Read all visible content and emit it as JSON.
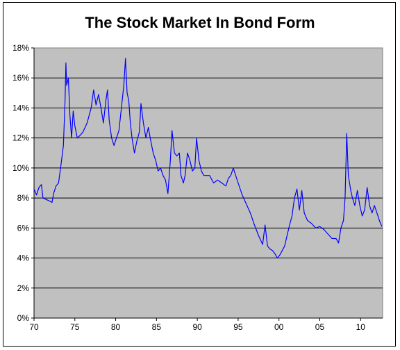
{
  "chart_data": {
    "type": "line",
    "title": "The Stock Market In Bond Form",
    "xlabel": "",
    "ylabel": "",
    "xlim": [
      1970,
      2012.7
    ],
    "ylim": [
      0,
      18
    ],
    "grid": true,
    "legend": "none",
    "x_ticks": [
      {
        "value": 1970,
        "label": "70"
      },
      {
        "value": 1975,
        "label": "75"
      },
      {
        "value": 1980,
        "label": "80"
      },
      {
        "value": 1985,
        "label": "85"
      },
      {
        "value": 1990,
        "label": "90"
      },
      {
        "value": 1995,
        "label": "95"
      },
      {
        "value": 2000,
        "label": "00"
      },
      {
        "value": 2005,
        "label": "05"
      },
      {
        "value": 2010,
        "label": "10"
      }
    ],
    "y_ticks": [
      {
        "value": 0,
        "label": "0%"
      },
      {
        "value": 2,
        "label": "2%"
      },
      {
        "value": 4,
        "label": "4%"
      },
      {
        "value": 6,
        "label": "6%"
      },
      {
        "value": 8,
        "label": "8%"
      },
      {
        "value": 10,
        "label": "10%"
      },
      {
        "value": 12,
        "label": "12%"
      },
      {
        "value": 14,
        "label": "14%"
      },
      {
        "value": 16,
        "label": "16%"
      },
      {
        "value": 18,
        "label": "18%"
      }
    ],
    "series": [
      {
        "color": "#0000ff",
        "points": [
          [
            1970.0,
            8.6
          ],
          [
            1970.3,
            8.2
          ],
          [
            1970.6,
            8.7
          ],
          [
            1970.9,
            8.9
          ],
          [
            1971.1,
            8.0
          ],
          [
            1971.5,
            7.9
          ],
          [
            1971.9,
            7.8
          ],
          [
            1972.2,
            7.7
          ],
          [
            1972.4,
            8.3
          ],
          [
            1972.7,
            8.8
          ],
          [
            1973.0,
            9.0
          ],
          [
            1973.3,
            10.2
          ],
          [
            1973.6,
            11.5
          ],
          [
            1973.8,
            14.5
          ],
          [
            1973.9,
            17.0
          ],
          [
            1974.0,
            15.5
          ],
          [
            1974.2,
            16.0
          ],
          [
            1974.4,
            13.5
          ],
          [
            1974.6,
            12.0
          ],
          [
            1974.8,
            13.8
          ],
          [
            1975.0,
            12.8
          ],
          [
            1975.3,
            12.0
          ],
          [
            1975.7,
            12.2
          ],
          [
            1976.0,
            12.4
          ],
          [
            1976.5,
            13.0
          ],
          [
            1977.0,
            14.0
          ],
          [
            1977.3,
            15.2
          ],
          [
            1977.6,
            14.2
          ],
          [
            1977.9,
            14.9
          ],
          [
            1978.2,
            14.0
          ],
          [
            1978.5,
            13.0
          ],
          [
            1978.8,
            14.5
          ],
          [
            1979.0,
            15.2
          ],
          [
            1979.2,
            13.2
          ],
          [
            1979.5,
            12.0
          ],
          [
            1979.8,
            11.5
          ],
          [
            1980.1,
            12.0
          ],
          [
            1980.4,
            12.5
          ],
          [
            1980.7,
            14.0
          ],
          [
            1981.0,
            15.5
          ],
          [
            1981.2,
            17.3
          ],
          [
            1981.4,
            15.0
          ],
          [
            1981.6,
            14.5
          ],
          [
            1981.8,
            13.0
          ],
          [
            1982.0,
            12.0
          ],
          [
            1982.3,
            11.0
          ],
          [
            1982.6,
            11.8
          ],
          [
            1982.9,
            12.4
          ],
          [
            1983.1,
            14.3
          ],
          [
            1983.4,
            13.0
          ],
          [
            1983.7,
            12.0
          ],
          [
            1984.0,
            12.7
          ],
          [
            1984.3,
            11.8
          ],
          [
            1984.6,
            11.0
          ],
          [
            1984.9,
            10.5
          ],
          [
            1985.2,
            9.8
          ],
          [
            1985.5,
            10.0
          ],
          [
            1985.8,
            9.5
          ],
          [
            1986.1,
            9.2
          ],
          [
            1986.4,
            8.3
          ],
          [
            1986.7,
            10.5
          ],
          [
            1986.9,
            12.5
          ],
          [
            1987.2,
            11.0
          ],
          [
            1987.5,
            10.8
          ],
          [
            1987.8,
            11.0
          ],
          [
            1988.0,
            9.5
          ],
          [
            1988.3,
            9.0
          ],
          [
            1988.5,
            9.5
          ],
          [
            1988.8,
            11.0
          ],
          [
            1989.1,
            10.5
          ],
          [
            1989.4,
            9.8
          ],
          [
            1989.7,
            10.0
          ],
          [
            1989.9,
            12.0
          ],
          [
            1990.2,
            10.5
          ],
          [
            1990.5,
            9.8
          ],
          [
            1990.8,
            9.5
          ],
          [
            1991.1,
            9.5
          ],
          [
            1991.5,
            9.5
          ],
          [
            1992.0,
            9.0
          ],
          [
            1992.5,
            9.2
          ],
          [
            1993.0,
            9.0
          ],
          [
            1993.5,
            8.8
          ],
          [
            1993.8,
            9.3
          ],
          [
            1994.1,
            9.5
          ],
          [
            1994.4,
            10.0
          ],
          [
            1994.7,
            9.5
          ],
          [
            1995.0,
            9.0
          ],
          [
            1995.5,
            8.2
          ],
          [
            1996.0,
            7.6
          ],
          [
            1996.5,
            7.0
          ],
          [
            1997.0,
            6.2
          ],
          [
            1997.5,
            5.5
          ],
          [
            1998.0,
            4.9
          ],
          [
            1998.3,
            6.2
          ],
          [
            1998.6,
            4.8
          ],
          [
            1998.9,
            4.6
          ],
          [
            1999.2,
            4.5
          ],
          [
            1999.5,
            4.3
          ],
          [
            1999.8,
            4.0
          ],
          [
            2000.1,
            4.2
          ],
          [
            2000.4,
            4.5
          ],
          [
            2000.7,
            4.8
          ],
          [
            2001.0,
            5.5
          ],
          [
            2001.3,
            6.2
          ],
          [
            2001.6,
            6.8
          ],
          [
            2001.9,
            8.0
          ],
          [
            2002.2,
            8.6
          ],
          [
            2002.5,
            7.2
          ],
          [
            2002.8,
            8.5
          ],
          [
            2003.1,
            7.0
          ],
          [
            2003.5,
            6.5
          ],
          [
            2004.0,
            6.3
          ],
          [
            2004.5,
            6.0
          ],
          [
            2005.0,
            6.1
          ],
          [
            2005.5,
            5.9
          ],
          [
            2006.0,
            5.6
          ],
          [
            2006.5,
            5.3
          ],
          [
            2007.0,
            5.3
          ],
          [
            2007.3,
            5.0
          ],
          [
            2007.6,
            6.0
          ],
          [
            2007.9,
            6.5
          ],
          [
            2008.1,
            8.0
          ],
          [
            2008.3,
            12.3
          ],
          [
            2008.5,
            9.5
          ],
          [
            2008.8,
            8.5
          ],
          [
            2009.0,
            8.0
          ],
          [
            2009.3,
            7.5
          ],
          [
            2009.6,
            8.5
          ],
          [
            2009.9,
            7.5
          ],
          [
            2010.2,
            6.8
          ],
          [
            2010.5,
            7.2
          ],
          [
            2010.8,
            8.7
          ],
          [
            2011.1,
            7.5
          ],
          [
            2011.4,
            7.0
          ],
          [
            2011.7,
            7.5
          ],
          [
            2012.0,
            7.0
          ],
          [
            2012.3,
            6.5
          ],
          [
            2012.6,
            6.1
          ]
        ]
      }
    ]
  }
}
